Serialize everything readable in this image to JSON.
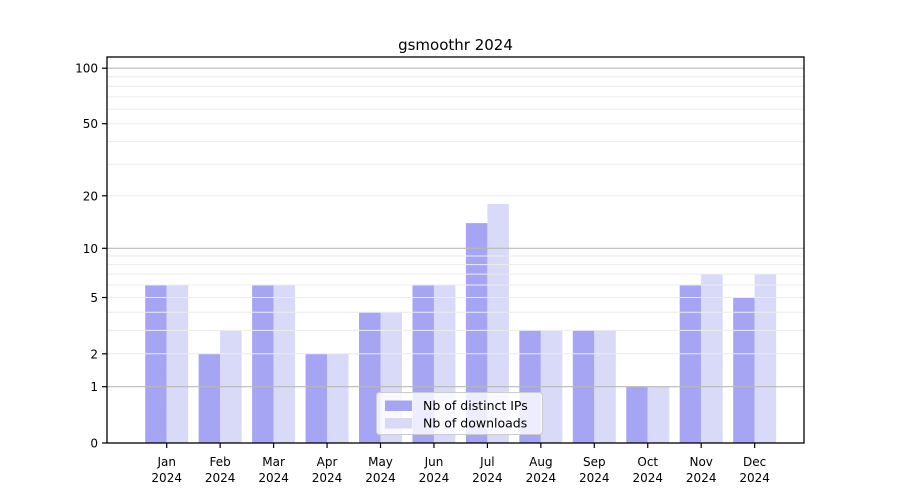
{
  "chart_data": {
    "type": "bar",
    "title": "gsmoothr 2024",
    "categories": [
      "Jan",
      "Feb",
      "Mar",
      "Apr",
      "May",
      "Jun",
      "Jul",
      "Aug",
      "Sep",
      "Oct",
      "Nov",
      "Dec"
    ],
    "year_label": "2024",
    "series": [
      {
        "name": "Nb of distinct IPs",
        "color": "#a5a5f4",
        "values": [
          6,
          2,
          6,
          2,
          4,
          6,
          14,
          3,
          3,
          1,
          6,
          5
        ]
      },
      {
        "name": "Nb of downloads",
        "color": "#d9d9f8",
        "values": [
          6,
          3,
          6,
          2,
          4,
          6,
          18,
          3,
          3,
          1,
          7,
          7
        ]
      }
    ],
    "y_axis": {
      "scale": "log1p",
      "ticks": [
        0,
        1,
        2,
        5,
        10,
        20,
        50,
        100
      ],
      "minor_gridlines": [
        2,
        3,
        4,
        5,
        6,
        7,
        8,
        9,
        20,
        30,
        40,
        50,
        60,
        70,
        80,
        90
      ],
      "major_gridlines": [
        1,
        10,
        100
      ],
      "ylim": [
        0,
        115
      ]
    },
    "legend": {
      "position": "bottom-center",
      "entries": [
        "Nb of distinct IPs",
        "Nb of downloads"
      ]
    },
    "grid": "horizontal, drawn over bars",
    "colors": {
      "grid_minor": "#ececec",
      "grid_major": "#b9b9b9",
      "spine": "#000000",
      "tick": "#000000",
      "text": "#000000",
      "legend_bg": "#ffffff",
      "legend_border": "#cccccc"
    }
  }
}
